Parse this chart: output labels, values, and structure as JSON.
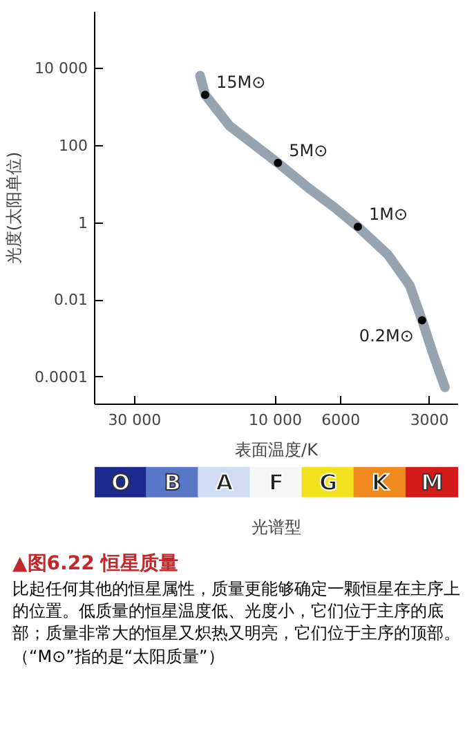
{
  "chart_data": [
    {
      "type": "line",
      "title": "▲图6.22 恒星质量",
      "xlabel": "表面温度/K",
      "ylabel": "光度(太阳单位)",
      "log": "xy",
      "grid": false,
      "xlim": [
        41000,
        2400
      ],
      "ylim": [
        2e-05,
        300000
      ],
      "xticks": [
        {
          "value": 30000,
          "label": "30 000"
        },
        {
          "value": 10000,
          "label": "10 000"
        },
        6000,
        3000
      ],
      "yticks": [
        {
          "value": 10000,
          "label": "10 000"
        },
        100,
        1,
        0.01,
        0.0001
      ],
      "series": [
        {
          "type": "line",
          "color": "#8c9aa6",
          "x": [
            18000,
            17300,
            14300,
            9800,
            7700,
            6200,
            5250,
            4150,
            3500,
            3180,
            2900,
            2660
          ],
          "values": [
            6600,
            2100,
            330,
            36,
            8,
            2.3,
            0.8,
            0.15,
            0.024,
            0.003,
            0.00035,
            5.5e-05
          ]
        },
        {
          "type": "scatter",
          "marker": "circle",
          "color": "#000000",
          "x": [
            17300,
            9800,
            5250,
            3180
          ],
          "values": [
            2100,
            36,
            0.8,
            0.003
          ]
        }
      ],
      "annotations": [
        {
          "text": "15M⊙",
          "x": 17300,
          "y": 2100
        },
        {
          "text": "5M⊙",
          "x": 9800,
          "y": 36
        },
        {
          "text": "1M⊙",
          "x": 5250,
          "y": 0.8
        },
        {
          "text": "0.2M⊙",
          "x": 3180,
          "y": 0.003
        },
        "比起任何其他的恒星属性，质量更能够确定一颗恒星在主序上的位置。低质量的恒星温度低、光度小，它们位于主序的底部；质量非常大的恒星又炽热又明亮，它们位于主序的顶部。（“M⊙”指的是“太阳质量”）"
      ]
    },
    {
      "type": "other",
      "xlabel": "光谱型",
      "categories": [
        "O",
        "B",
        "A",
        "F",
        "G",
        "K",
        "M"
      ],
      "colors": [
        "#1c2a8e",
        "#5a78c8",
        "#cfdcf2",
        "#f6f6f6",
        "#f2e21e",
        "#f08a1e",
        "#d21a1a"
      ]
    }
  ]
}
